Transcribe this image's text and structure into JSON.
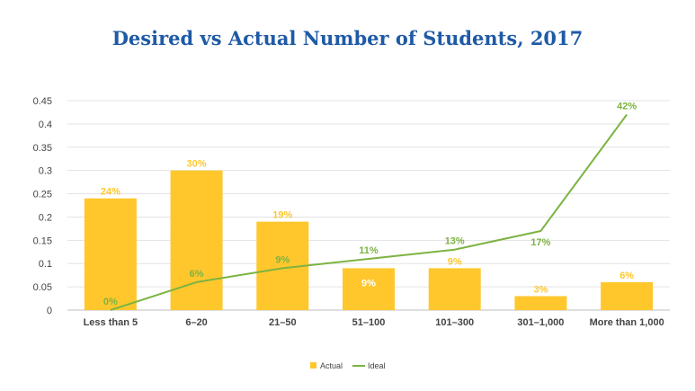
{
  "chart_data": {
    "type": "bar",
    "title": "Desired vs Actual Number of Students, 2017",
    "xlabel": "",
    "ylabel": "",
    "categories": [
      "Less than 5",
      "6–20",
      "21–50",
      "51–100",
      "101–300",
      "301–1,000",
      "More than 1,000"
    ],
    "ylim": [
      0,
      0.45
    ],
    "yticks": [
      "0",
      "0.05",
      "0.1",
      "0.15",
      "0.2",
      "0.25",
      "0.3",
      "0.35",
      "0.4",
      "0.45"
    ],
    "ytick_values": [
      0,
      0.05,
      0.1,
      0.15,
      0.2,
      0.25,
      0.3,
      0.35,
      0.4,
      0.45
    ],
    "grid": true,
    "legend_position": "bottom",
    "series": [
      {
        "name": "Actual",
        "type": "bar",
        "color": "#ffc72c",
        "values": [
          0.24,
          0.3,
          0.19,
          0.09,
          0.09,
          0.03,
          0.06
        ],
        "labels": [
          "24%",
          "30%",
          "19%",
          "9%",
          "9%",
          "3%",
          "6%"
        ]
      },
      {
        "name": "Ideal",
        "type": "line",
        "color": "#7cb342",
        "values": [
          0.0,
          0.06,
          0.09,
          0.11,
          0.13,
          0.17,
          0.42
        ],
        "labels": [
          "0%",
          "6%",
          "9%",
          "11%",
          "13%",
          "17%",
          "42%"
        ]
      }
    ]
  }
}
